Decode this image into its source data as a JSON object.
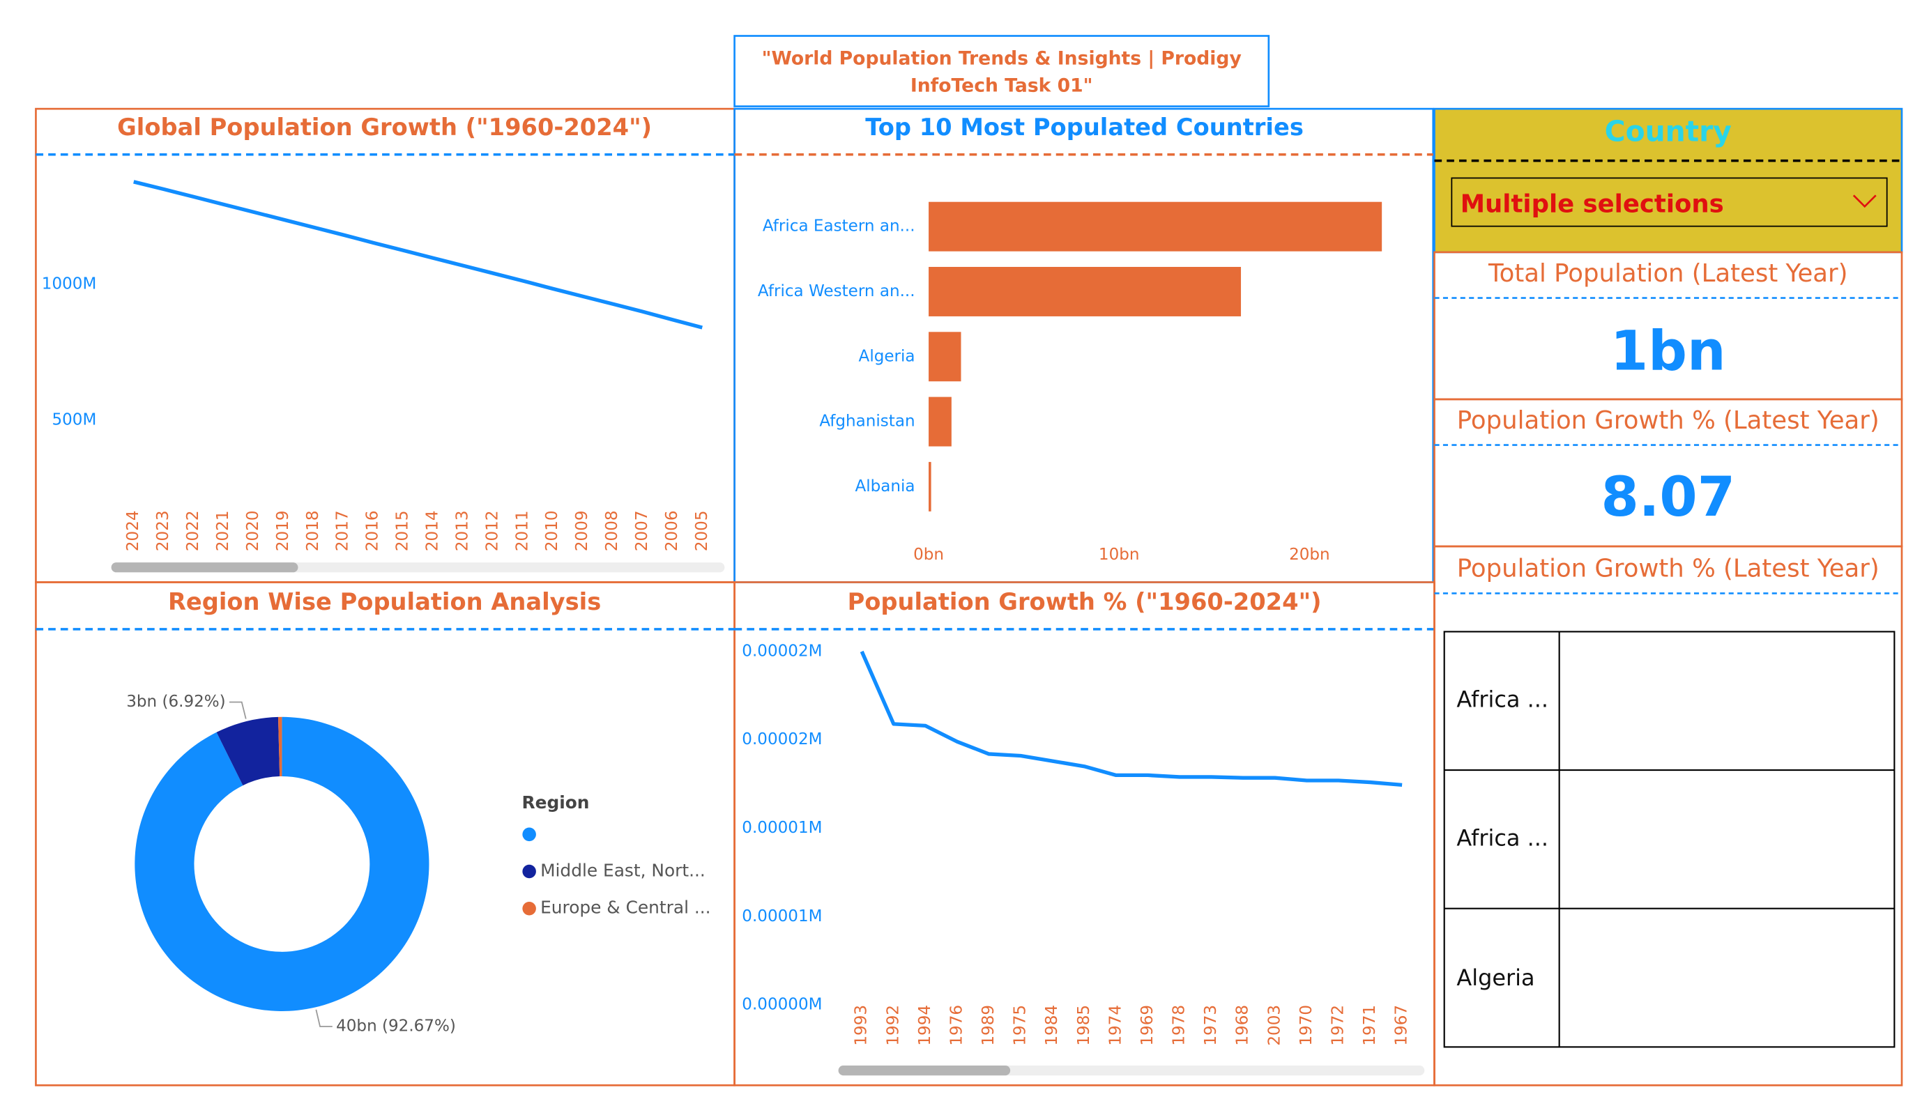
{
  "header": {
    "title": "\"World Population Trends & Insights | Prodigy InfoTech Task 01\""
  },
  "chart_data": [
    {
      "type": "line",
      "title": "Global Population Growth (\"1960-2024\")",
      "categories": [
        "2024",
        "2023",
        "2022",
        "2021",
        "2020",
        "2019",
        "2018",
        "2017",
        "2016",
        "2015",
        "2014",
        "2013",
        "2012",
        "2011",
        "2010",
        "2009",
        "2008",
        "2007",
        "2006",
        "2005"
      ],
      "values": [
        1377,
        1350,
        1322,
        1294,
        1266,
        1238,
        1210,
        1182,
        1153,
        1125,
        1097,
        1069,
        1041,
        1013,
        984,
        956,
        928,
        900,
        870,
        841
      ],
      "color": "#118DFF",
      "ylim": [
        0,
        1450
      ],
      "yticks": [
        {
          "value": 500,
          "label": "500M"
        },
        {
          "value": 1000,
          "label": "1000M"
        }
      ]
    },
    {
      "type": "barh",
      "title": "Top 10 Most Populated Countries",
      "categories": [
        "Africa Eastern an...",
        "Africa Western an...",
        "Algeria",
        "Afghanistan",
        "Albania"
      ],
      "values": [
        23.8,
        16.4,
        1.7,
        1.2,
        0.13
      ],
      "color": "#E66C37",
      "xlim": [
        0,
        25
      ],
      "xticks": [
        {
          "value": 0,
          "label": "0bn"
        },
        {
          "value": 10,
          "label": "10bn"
        },
        {
          "value": 20,
          "label": "20bn"
        }
      ]
    },
    {
      "type": "donut",
      "title": "Region Wise Population Analysis",
      "legend_title": "Region",
      "categories": [
        null,
        "Middle East, Nort...",
        "Europe & Central ..."
      ],
      "values": [
        92.67,
        6.92,
        0.41
      ],
      "value_labels": [
        "40bn (92.67%)",
        "3bn (6.92%)",
        null
      ],
      "colors": [
        "#118DFF",
        "#12239E",
        "#E66C37"
      ]
    },
    {
      "type": "line",
      "title": "Population Growth % (\"1960-2024\")",
      "categories": [
        "1993",
        "1992",
        "1994",
        "1976",
        "1989",
        "1975",
        "1984",
        "1985",
        "1974",
        "1969",
        "1978",
        "1973",
        "1968",
        "2003",
        "1970",
        "1972",
        "1971",
        "1967"
      ],
      "values": [
        2e-05,
        1.59e-05,
        1.58e-05,
        1.49e-05,
        1.42e-05,
        1.41e-05,
        1.38e-05,
        1.35e-05,
        1.3e-05,
        1.3e-05,
        1.29e-05,
        1.29e-05,
        1.285e-05,
        1.285e-05,
        1.27e-05,
        1.27e-05,
        1.26e-05,
        1.245e-05
      ],
      "color": "#118DFF",
      "ylim": [
        0,
        2.08e-05
      ],
      "yticks": [
        {
          "value": 2e-05,
          "label": "0.00002M"
        },
        {
          "value": 1.5e-05,
          "label": "0.00002M"
        },
        {
          "value": 1e-05,
          "label": "0.00001M"
        },
        {
          "value": 5e-06,
          "label": "0.00001M"
        },
        {
          "value": 0,
          "label": "0.00000M"
        }
      ]
    }
  ],
  "slicer": {
    "title": "Country",
    "value": "Multiple selections"
  },
  "cards": [
    {
      "title": "Total Population (Latest Year)",
      "value": "1bn"
    },
    {
      "title": "Population Growth % (Latest Year)",
      "value": 8.07
    },
    {
      "title": "Population Growth % (Latest Year)"
    }
  ],
  "table": {
    "rows": [
      "Africa ...",
      "Africa ...",
      "Algeria"
    ]
  }
}
